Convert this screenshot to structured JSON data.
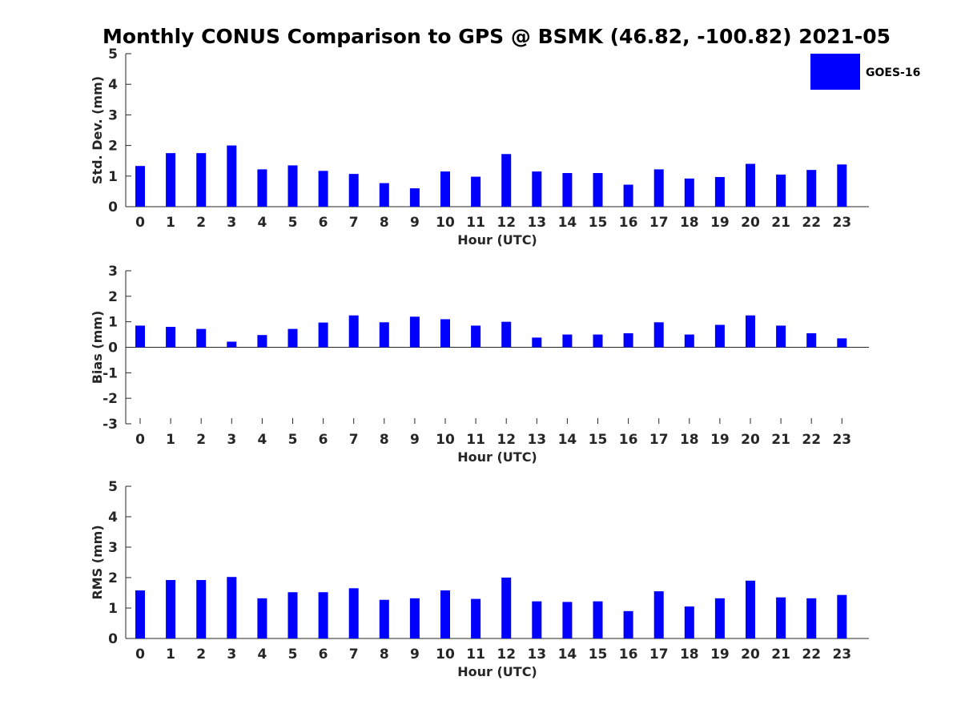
{
  "chart_data": {
    "title": "Monthly CONUS Comparison to GPS @ BSMK (46.82, -100.82) 2021-05",
    "legend": {
      "label": "GOES-16",
      "color": "#0000ff",
      "placement": "top-right"
    },
    "bar_color": "#0000ff",
    "panels": [
      {
        "type": "bar",
        "xlabel": "Hour (UTC)",
        "ylabel": "Std. Dev. (mm)",
        "ylim": [
          0,
          5
        ],
        "yticks": [
          0,
          1,
          2,
          3,
          4,
          5
        ],
        "grid": false,
        "categories": [
          "0",
          "1",
          "2",
          "3",
          "4",
          "5",
          "6",
          "7",
          "8",
          "9",
          "10",
          "11",
          "12",
          "13",
          "14",
          "15",
          "16",
          "17",
          "18",
          "19",
          "20",
          "21",
          "22",
          "23"
        ],
        "series": [
          {
            "name": "GOES-16",
            "values": [
              1.33,
              1.75,
              1.75,
              2.0,
              1.22,
              1.35,
              1.17,
              1.07,
              0.77,
              0.6,
              1.15,
              0.98,
              1.72,
              1.15,
              1.1,
              1.1,
              0.72,
              1.22,
              0.92,
              0.97,
              1.4,
              1.05,
              1.2,
              1.38
            ]
          }
        ]
      },
      {
        "type": "bar",
        "xlabel": "Hour (UTC)",
        "ylabel": "Bias (mm)",
        "ylim": [
          -3,
          3
        ],
        "yticks": [
          -3,
          -2,
          -1,
          0,
          1,
          2,
          3
        ],
        "grid": false,
        "categories": [
          "0",
          "1",
          "2",
          "3",
          "4",
          "5",
          "6",
          "7",
          "8",
          "9",
          "10",
          "11",
          "12",
          "13",
          "14",
          "15",
          "16",
          "17",
          "18",
          "19",
          "20",
          "21",
          "22",
          "23"
        ],
        "series": [
          {
            "name": "GOES-16",
            "values": [
              0.85,
              0.8,
              0.72,
              0.22,
              0.48,
              0.72,
              0.97,
              1.25,
              0.98,
              1.2,
              1.1,
              0.85,
              1.0,
              0.38,
              0.5,
              0.5,
              0.55,
              0.98,
              0.5,
              0.88,
              1.25,
              0.85,
              0.55,
              0.35
            ]
          }
        ]
      },
      {
        "type": "bar",
        "xlabel": "Hour (UTC)",
        "ylabel": "RMS (mm)",
        "ylim": [
          0,
          5
        ],
        "yticks": [
          0,
          1,
          2,
          3,
          4,
          5
        ],
        "grid": false,
        "categories": [
          "0",
          "1",
          "2",
          "3",
          "4",
          "5",
          "6",
          "7",
          "8",
          "9",
          "10",
          "11",
          "12",
          "13",
          "14",
          "15",
          "16",
          "17",
          "18",
          "19",
          "20",
          "21",
          "22",
          "23"
        ],
        "series": [
          {
            "name": "GOES-16",
            "values": [
              1.58,
              1.92,
              1.92,
              2.02,
              1.32,
              1.52,
              1.52,
              1.65,
              1.27,
              1.32,
              1.58,
              1.3,
              2.0,
              1.22,
              1.2,
              1.22,
              0.9,
              1.55,
              1.05,
              1.32,
              1.9,
              1.35,
              1.32,
              1.43
            ]
          }
        ]
      }
    ]
  }
}
